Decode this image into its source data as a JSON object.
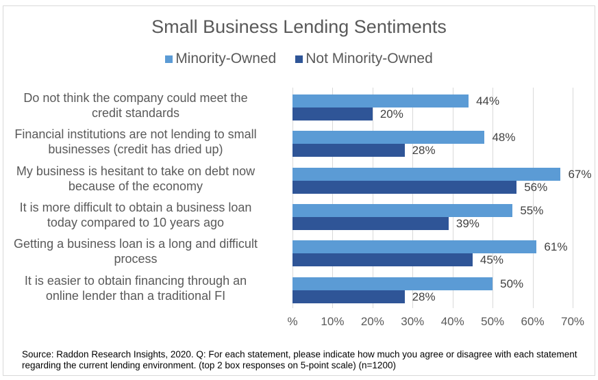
{
  "chart_data": {
    "type": "bar",
    "orientation": "horizontal",
    "title": "Small Business Lending Sentiments",
    "categories": [
      "Do not think the company could meet the credit standards",
      "Financial institutions are not lending to small businesses (credit has dried up)",
      "My business is hesitant to take on debt now because of the economy",
      "It is more difficult to obtain a business loan today compared to 10 years ago",
      "Getting a business loan is a long and difficult process",
      "It is easier to obtain financing through an online lender than a traditional FI"
    ],
    "series": [
      {
        "name": "Minority-Owned",
        "color": "#5B9BD5",
        "values": [
          44,
          48,
          67,
          55,
          61,
          50
        ]
      },
      {
        "name": "Not Minority-Owned",
        "color": "#2F5597",
        "values": [
          20,
          28,
          56,
          39,
          45,
          28
        ]
      }
    ],
    "xlabel": "",
    "ylabel": "",
    "xlim": [
      0,
      70
    ],
    "xticks": [
      "%",
      "10%",
      "20%",
      "30%",
      "40%",
      "50%",
      "60%",
      "70%"
    ],
    "grid": true,
    "legend_position": "top",
    "data_labels": true,
    "value_format": "percent"
  },
  "title": "Small Business Lending Sentiments",
  "legend": [
    {
      "label": "Minority-Owned",
      "color": "#5B9BD5"
    },
    {
      "label": "Not Minority-Owned",
      "color": "#2F5597"
    }
  ],
  "category_lines": [
    [
      "Do not think the company could meet the",
      "credit standards"
    ],
    [
      "Financial institutions are not lending to small",
      "businesses (credit has dried up)"
    ],
    [
      "My business is hesitant to take on debt now",
      "because of the economy"
    ],
    [
      "It is more difficult to obtain a business loan",
      "today compared to 10 years ago"
    ],
    [
      "Getting a business loan is a long and difficult",
      "process"
    ],
    [
      "It is easier to obtain financing through an",
      "online lender than a traditional FI"
    ]
  ],
  "value_labels": {
    "minority": [
      "44%",
      "48%",
      "67%",
      "55%",
      "61%",
      "50%"
    ],
    "not_minority": [
      "20%",
      "28%",
      "56%",
      "39%",
      "45%",
      "28%"
    ]
  },
  "source": "Source: Raddon Research Insights, 2020. Q: For each statement, please indicate how much you agree or disagree with each statement regarding the current lending environment. (top 2 box responses on 5-point scale) (n=1200)"
}
